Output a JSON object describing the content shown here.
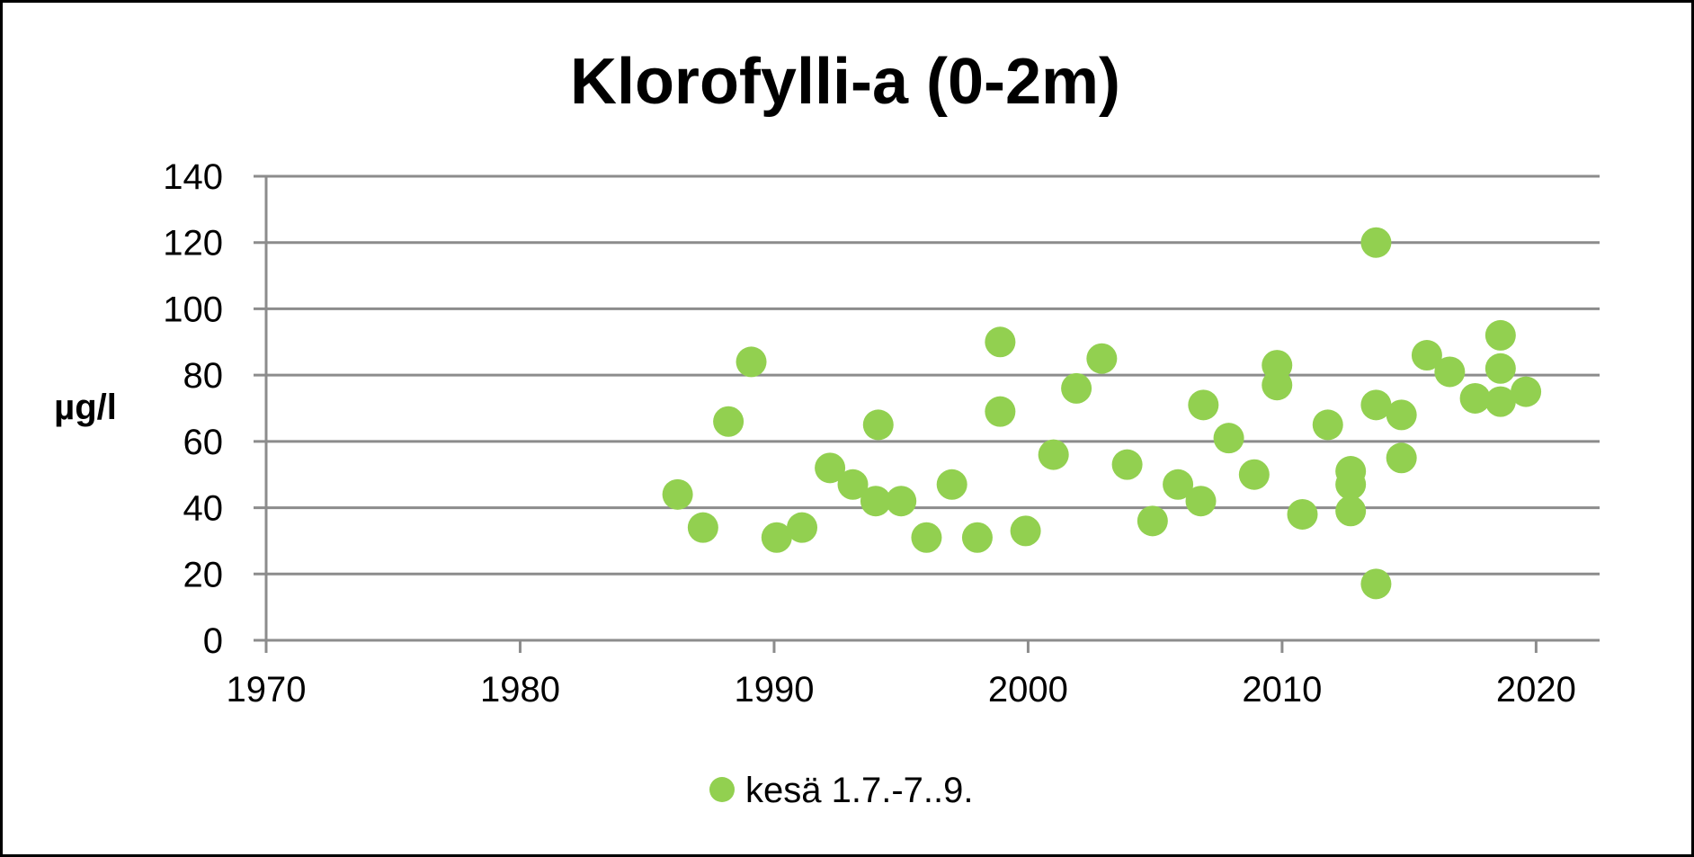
{
  "chart_data": {
    "type": "scatter",
    "title": "Klorofylli-a (0-2m)",
    "xlabel": "",
    "ylabel": "µg/l",
    "xlim": [
      1970,
      2022.5
    ],
    "ylim": [
      0,
      140
    ],
    "xticks": [
      1970,
      1980,
      1990,
      2000,
      2010,
      2020
    ],
    "yticks": [
      0,
      20,
      40,
      60,
      80,
      100,
      120,
      140
    ],
    "grid": true,
    "legend": "bottom",
    "series": [
      {
        "name": "kesä 1.7.-7..9.",
        "color": "#92d050",
        "points": [
          [
            1986.2,
            44
          ],
          [
            1987.2,
            34
          ],
          [
            1988.2,
            66
          ],
          [
            1989.1,
            84
          ],
          [
            1990.1,
            31
          ],
          [
            1991.1,
            34
          ],
          [
            1992.2,
            52
          ],
          [
            1993.1,
            47
          ],
          [
            1994.0,
            42
          ],
          [
            1994.1,
            65
          ],
          [
            1995.0,
            42
          ],
          [
            1996.0,
            31
          ],
          [
            1997.0,
            47
          ],
          [
            1998.0,
            31
          ],
          [
            1998.9,
            90
          ],
          [
            1998.9,
            69
          ],
          [
            1999.9,
            33
          ],
          [
            2001.0,
            56
          ],
          [
            2001.9,
            76
          ],
          [
            2002.9,
            85
          ],
          [
            2003.9,
            53
          ],
          [
            2004.9,
            36
          ],
          [
            2005.9,
            47
          ],
          [
            2006.8,
            42
          ],
          [
            2006.9,
            71
          ],
          [
            2007.9,
            61
          ],
          [
            2008.9,
            50
          ],
          [
            2009.8,
            83
          ],
          [
            2009.8,
            77
          ],
          [
            2010.8,
            38
          ],
          [
            2011.8,
            65
          ],
          [
            2012.7,
            51
          ],
          [
            2012.7,
            47
          ],
          [
            2012.7,
            39
          ],
          [
            2013.7,
            120
          ],
          [
            2013.7,
            71
          ],
          [
            2013.7,
            17
          ],
          [
            2014.7,
            68
          ],
          [
            2014.7,
            55
          ],
          [
            2015.7,
            86
          ],
          [
            2016.6,
            81
          ],
          [
            2017.6,
            73
          ],
          [
            2018.6,
            92
          ],
          [
            2018.6,
            82
          ],
          [
            2018.6,
            72
          ],
          [
            2019.6,
            75
          ]
        ]
      }
    ]
  }
}
